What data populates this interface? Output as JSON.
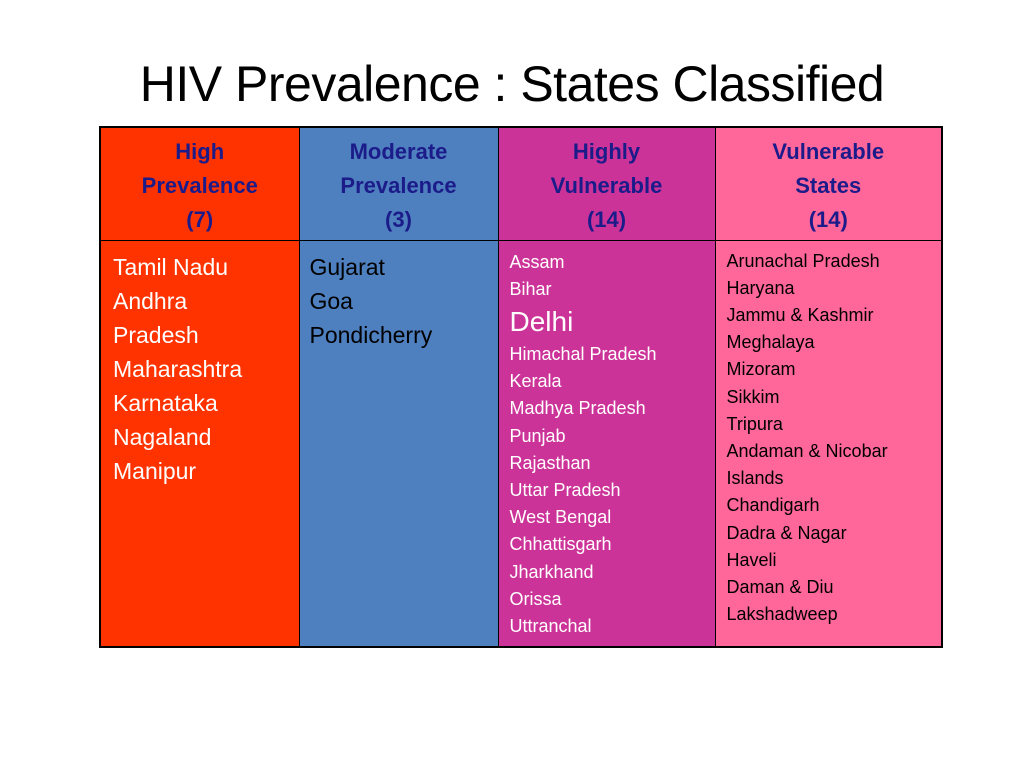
{
  "slide": {
    "title": "HIV Prevalence : States Classified"
  },
  "table": {
    "columns": [
      {
        "heading": [
          "High",
          "Prevalence",
          "(7)"
        ],
        "color": "#ff3300",
        "states": [
          "Tamil Nadu",
          "Andhra",
          "Pradesh",
          "Maharashtra",
          "Karnataka",
          "Nagaland",
          "Manipur"
        ]
      },
      {
        "heading": [
          "Moderate",
          "Prevalence",
          "(3)"
        ],
        "color": "#4e7fbe",
        "states": [
          "Gujarat",
          "Goa",
          "Pondicherry"
        ]
      },
      {
        "heading": [
          "Highly",
          "Vulnerable",
          "(14)"
        ],
        "color": "#cc3399",
        "states": [
          "Assam",
          "Bihar",
          "Delhi",
          "Himachal Pradesh",
          "Kerala",
          "Madhya Pradesh",
          "Punjab",
          "Rajasthan",
          "Uttar Pradesh",
          "West Bengal",
          "Chhattisgarh",
          "Jharkhand",
          "Orissa",
          "Uttranchal"
        ]
      },
      {
        "heading": [
          "Vulnerable",
          "States",
          "(14)"
        ],
        "color": "#ff6699",
        "states": [
          "Arunachal Pradesh",
          "Haryana",
          "Jammu & Kashmir",
          "Meghalaya",
          "Mizoram",
          "Sikkim",
          "Tripura",
          "Andaman & Nicobar",
          "Islands",
          "Chandigarh",
          "Dadra & Nagar",
          "Haveli",
          "Daman & Diu",
          "Lakshadweep"
        ]
      }
    ]
  }
}
